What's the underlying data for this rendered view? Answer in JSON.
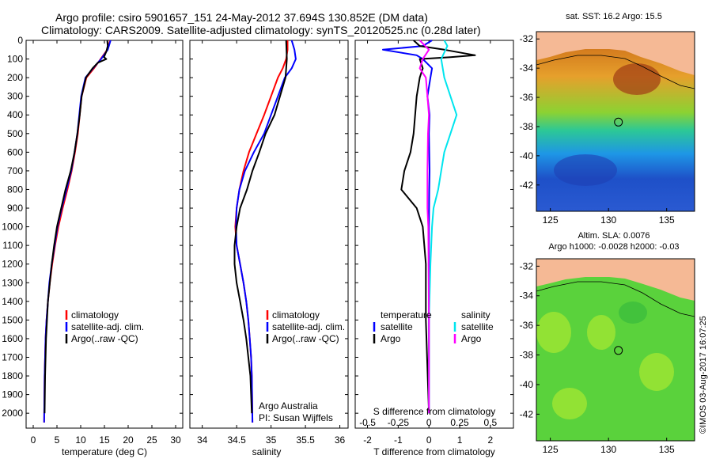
{
  "header": {
    "title_line1": "Argo profile: csiro 5901657_151 24-May-2012 37.694S 130.852E (DM data)",
    "title_line2": "Climatology: CARS2009. Satellite-adjusted climatology: synTS_20120525.nc (0.28d later)"
  },
  "colors": {
    "climatology": "#ff0000",
    "satellite": "#0000ff",
    "argo": "#000000",
    "sal_satellite": "#00e5ee",
    "sal_argo": "#ff00ff",
    "land": "#f5b995"
  },
  "legend_profiles": [
    {
      "label": "climatology"
    },
    {
      "label": "satellite-adj. clim."
    },
    {
      "label": "Argo(..raw -QC)"
    }
  ],
  "legend_diff": {
    "temp_title": "temperature",
    "sal_title": "salinity",
    "temp_items": [
      {
        "label": "satellite"
      },
      {
        "label": "Argo"
      }
    ],
    "sal_items": [
      {
        "label": "satellite"
      },
      {
        "label": "Argo"
      }
    ]
  },
  "credit": {
    "line1": "Argo Australia",
    "line2": "PI: Susan Wijffels"
  },
  "depth_ticks": [
    "0",
    "100",
    "200",
    "300",
    "400",
    "500",
    "600",
    "700",
    "800",
    "900",
    "1000",
    "1100",
    "1200",
    "1300",
    "1400",
    "1500",
    "1600",
    "1700",
    "1800",
    "1900",
    "2000"
  ],
  "maps": {
    "sst_title": "sat. SST: 16.2 Argo: 15.5",
    "sla_title1": "Altim. SLA: 0.0076",
    "sla_title2": "Argo h1000: -0.0028 h2000: -0.03",
    "lat_ticks": [
      "-32",
      "-34",
      "-36",
      "-38",
      "-40",
      "-42"
    ],
    "lon_ticks": [
      "125",
      "130",
      "135"
    ],
    "float_position": {
      "lon": 130.852,
      "lat": -37.694
    }
  },
  "imos_stamp": "©IMOS 03-Aug-2017 16:07:25",
  "chart_data": [
    {
      "type": "line",
      "xlabel": "temperature (deg C)",
      "ylabel": "",
      "xlim": [
        -1.5,
        31.5
      ],
      "ylim": [
        2080,
        0
      ],
      "xticks": [
        "0",
        "5",
        "10",
        "15",
        "20",
        "25",
        "30"
      ],
      "series": [
        {
          "name": "climatology",
          "x": [
            16.2,
            15.6,
            14.2,
            12.8,
            11.2,
            10.2,
            9.8,
            9.4,
            8.8,
            8.1,
            7.2,
            6.2,
            5.3,
            4.6,
            4.0,
            3.5,
            3.1,
            2.8,
            2.6,
            2.5,
            2.4,
            2.3
          ],
          "y": [
            0,
            50,
            100,
            150,
            200,
            300,
            400,
            500,
            600,
            700,
            800,
            900,
            1000,
            1100,
            1200,
            1300,
            1400,
            1500,
            1600,
            1700,
            1800,
            2050
          ]
        },
        {
          "name": "satellite-adj. clim.",
          "x": [
            16.3,
            15.7,
            14.3,
            12.6,
            11.0,
            10.1,
            9.7,
            9.3,
            8.7,
            8.0,
            7.0,
            6.0,
            5.1,
            4.5,
            3.9,
            3.4,
            3.1,
            2.8,
            2.6,
            2.5,
            2.4,
            2.3
          ],
          "y": [
            0,
            50,
            100,
            150,
            200,
            300,
            400,
            500,
            600,
            700,
            800,
            900,
            1000,
            1100,
            1200,
            1300,
            1400,
            1500,
            1600,
            1700,
            1800,
            2050
          ]
        },
        {
          "name": "Argo(..raw -QC)",
          "x": [
            15.6,
            15.7,
            15.4,
            14.9,
            15.4,
            13.6,
            12.5,
            11.1,
            10.2,
            9.8,
            9.3,
            8.7,
            7.9,
            6.8,
            5.9,
            5.0,
            4.4,
            3.9,
            3.5,
            3.1,
            2.9,
            2.7,
            2.6,
            2.5,
            2.4
          ],
          "y": [
            0,
            30,
            60,
            90,
            100,
            120,
            150,
            200,
            300,
            400,
            500,
            600,
            700,
            800,
            900,
            1000,
            1100,
            1200,
            1300,
            1400,
            1500,
            1600,
            1700,
            1800,
            2000
          ]
        }
      ]
    },
    {
      "type": "line",
      "xlabel": "salinity",
      "ylabel": "",
      "xlim": [
        33.82,
        36.12
      ],
      "ylim": [
        2080,
        0
      ],
      "xticks": [
        "34",
        "34.5",
        "35",
        "35.5",
        "36"
      ],
      "series": [
        {
          "name": "climatology",
          "x": [
            35.24,
            35.24,
            35.22,
            35.17,
            35.1,
            35.0,
            34.9,
            34.79,
            34.68,
            34.6,
            34.54,
            34.5,
            34.48,
            34.5,
            34.55,
            34.6,
            34.64,
            34.67,
            34.69,
            34.71,
            34.72,
            34.73
          ],
          "y": [
            0,
            50,
            100,
            150,
            200,
            300,
            400,
            500,
            600,
            700,
            800,
            900,
            1000,
            1100,
            1200,
            1300,
            1400,
            1500,
            1600,
            1700,
            1800,
            2050
          ]
        },
        {
          "name": "satellite-adj. clim.",
          "x": [
            35.3,
            35.34,
            35.36,
            35.3,
            35.2,
            35.1,
            35.0,
            34.9,
            34.75,
            34.62,
            34.54,
            34.5,
            34.49,
            34.5,
            34.55,
            34.6,
            34.64,
            34.67,
            34.69,
            34.71,
            34.72,
            34.73
          ],
          "y": [
            0,
            50,
            100,
            150,
            200,
            300,
            400,
            500,
            600,
            700,
            800,
            900,
            1000,
            1100,
            1200,
            1300,
            1400,
            1500,
            1600,
            1700,
            1800,
            2050
          ]
        },
        {
          "name": "Argo(..raw -QC)",
          "x": [
            35.22,
            35.23,
            35.21,
            35.13,
            35.05,
            34.92,
            34.83,
            34.73,
            34.65,
            34.55,
            34.5,
            34.47,
            34.47,
            34.5,
            34.55,
            34.6,
            34.64,
            34.67,
            34.7,
            34.71,
            34.72
          ],
          "y": [
            0,
            100,
            200,
            300,
            400,
            500,
            600,
            700,
            800,
            900,
            1000,
            1100,
            1200,
            1300,
            1400,
            1500,
            1600,
            1700,
            1800,
            1900,
            2000
          ]
        }
      ]
    },
    {
      "type": "line",
      "xlabel": "T difference from climatology",
      "xlabel_top": "S difference from climatology",
      "ylabel": "",
      "xlim": [
        -2.4,
        2.75
      ],
      "ylim": [
        2080,
        0
      ],
      "xticks": [
        "-2",
        "-1",
        "0",
        "1",
        "2"
      ],
      "xticks_top": [
        "-0.5",
        "-0.25",
        "0",
        "0.25",
        "0.5"
      ],
      "series": [
        {
          "name": "temperature satellite",
          "x": [
            0.1,
            -0.2,
            -1.5,
            -0.4,
            -0.2,
            0.1,
            0.05,
            -0.05,
            0.02,
            0,
            0.01,
            0.02,
            0.01,
            0,
            0,
            0
          ],
          "y": [
            0,
            30,
            50,
            80,
            100,
            150,
            200,
            300,
            400,
            500,
            600,
            700,
            800,
            1000,
            1500,
            2000
          ]
        },
        {
          "name": "temperature Argo",
          "x": [
            -0.5,
            -0.3,
            0.5,
            1.5,
            0.7,
            -0.3,
            -0.2,
            -0.3,
            -0.4,
            -0.5,
            -0.6,
            -0.8,
            -0.9,
            -0.4,
            -0.2,
            -0.1,
            -0.1,
            0
          ],
          "y": [
            0,
            30,
            50,
            80,
            90,
            100,
            150,
            200,
            300,
            500,
            600,
            700,
            800,
            900,
            1000,
            1200,
            1500,
            2000
          ]
        },
        {
          "name": "salinity satellite",
          "x": [
            0.5,
            0.6,
            0.4,
            0.5,
            0.7,
            0.9,
            0.7,
            0.5,
            0.4,
            0.3,
            0.15,
            0.1,
            0.05,
            0,
            0,
            0
          ],
          "y": [
            0,
            30,
            100,
            200,
            300,
            400,
            500,
            600,
            700,
            800,
            900,
            1000,
            1200,
            1500,
            1800,
            2000
          ]
        },
        {
          "name": "salinity Argo",
          "x": [
            -0.3,
            0,
            -0.2,
            -0.3,
            -0.1,
            -0.05,
            0,
            -0.03,
            -0.05,
            -0.05,
            -0.05,
            -0.02,
            0,
            0
          ],
          "y": [
            0,
            50,
            100,
            150,
            200,
            300,
            400,
            500,
            700,
            800,
            900,
            1000,
            1500,
            2000
          ]
        }
      ]
    }
  ]
}
